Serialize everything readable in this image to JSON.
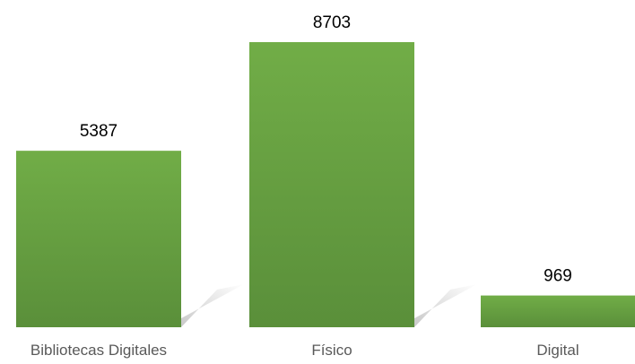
{
  "chart_data": {
    "type": "bar",
    "categories": [
      "Bibliotecas Digitales",
      "Físico",
      "Digital"
    ],
    "values": [
      5387,
      8703,
      969
    ],
    "value_labels": [
      "5387",
      "8703",
      "969"
    ],
    "title": "",
    "xlabel": "",
    "ylabel": "",
    "ylim": [
      0,
      8703
    ],
    "grid": false,
    "legend": "none",
    "colors": {
      "bar_top": "#71ad47",
      "bar_bottom": "#5a8f3a",
      "shadow": "#bfbfbf"
    }
  }
}
